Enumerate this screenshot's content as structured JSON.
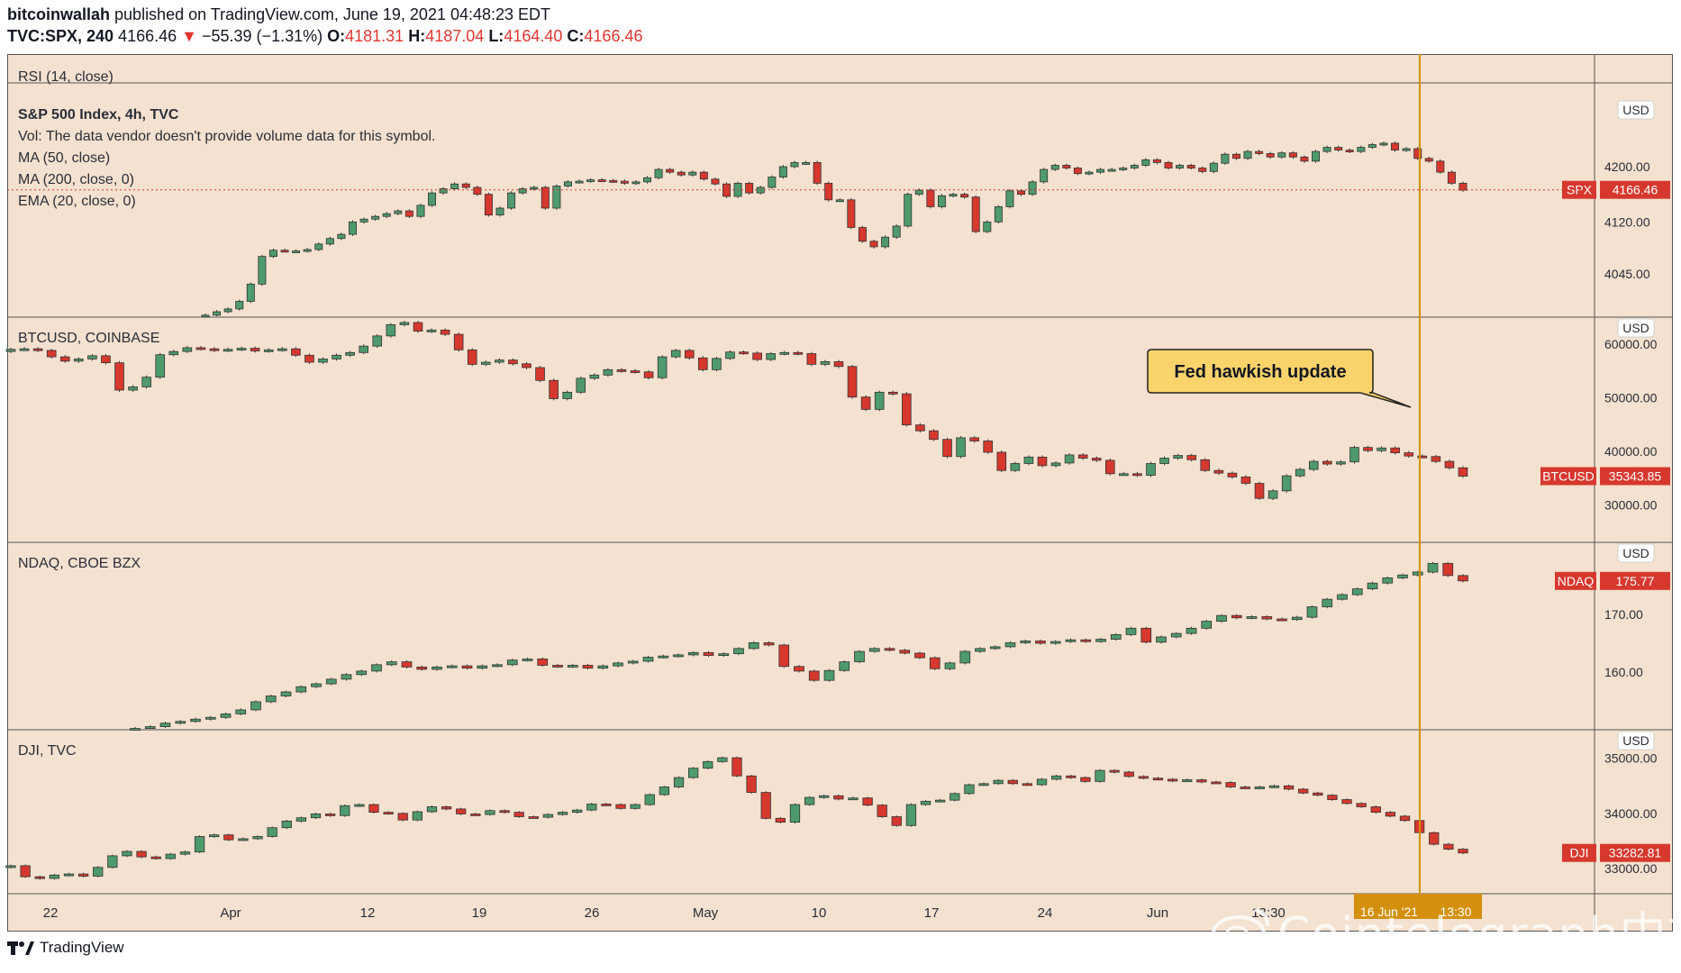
{
  "header": {
    "author": "bitcoinwallah",
    "published_text": "published on TradingView.com, June 19, 2021 04:48:23 EDT",
    "symbol": "TVC:SPX, 240",
    "last": "4166.46",
    "change": "−55.39 (−1.31%)",
    "o_label": "O:",
    "o": "4181.31",
    "h_label": "H:",
    "h": "4187.04",
    "l_label": "L:",
    "l": "4164.40",
    "c_label": "C:",
    "c": "4166.46"
  },
  "footer": {
    "brand": "TradingView",
    "watermark": "Cointelegraph中文"
  },
  "colors": {
    "background": "#f4e1cf",
    "up": "#4e9a6d",
    "down": "#d6382e",
    "event_line": "#d4900c",
    "callout_bg": "#fbd36b"
  },
  "chart_data": [
    {
      "type": "candlestick",
      "pane": "RSI",
      "title": "RSI (14, close)"
    },
    {
      "type": "candlestick",
      "title": "S&P 500 Index, 4h, TVC",
      "legend": [
        "Vol: The data vendor doesn't provide volume data for this symbol.",
        "MA (50, close)",
        "MA (200, close, 0)",
        "EMA (20, close, 0)"
      ],
      "currency": "USD",
      "y_ticks": [
        "4200.00",
        "4120.00",
        "4045.00"
      ],
      "y_range": [
        3990,
        4290
      ],
      "tag": "SPX",
      "last": "4166.46",
      "y_values": [
        3985,
        3990,
        3994,
        4005,
        4030,
        4070,
        4079,
        4078,
        4078,
        4080,
        4088,
        4096,
        4102,
        4120,
        4124,
        4128,
        4132,
        4136,
        4128,
        4144,
        4162,
        4168,
        4175,
        4170,
        4160,
        4130,
        4140,
        4162,
        4168,
        4170,
        4140,
        4172,
        4178,
        4179,
        4181,
        4180,
        4179,
        4176,
        4178,
        4184,
        4196,
        4192,
        4188,
        4192,
        4182,
        4175,
        4157,
        4176,
        4162,
        4170,
        4185,
        4200,
        4206,
        4206,
        4176,
        4152,
        4152,
        4112,
        4092,
        4084,
        4098,
        4114,
        4160,
        4166,
        4142,
        4158,
        4160,
        4156,
        4106,
        4120,
        4142,
        4165,
        4160,
        4178,
        4196,
        4202,
        4198,
        4190,
        4192,
        4196,
        4196,
        4198,
        4202,
        4210,
        4206,
        4198,
        4202,
        4198,
        4193,
        4205,
        4218,
        4212,
        4222,
        4219,
        4214,
        4220,
        4214,
        4208,
        4222,
        4228,
        4224,
        4222,
        4228,
        4232,
        4234,
        4224,
        4226,
        4212,
        4208,
        4192,
        4176,
        4166
      ]
    },
    {
      "type": "candlestick",
      "title": "BTCUSD, COINBASE",
      "currency": "USD",
      "y_ticks": [
        "60000.00",
        "50000.00",
        "40000.00",
        "30000.00"
      ],
      "y_range": [
        24000,
        64000
      ],
      "tag": "BTCUSD",
      "last": "35343.85",
      "annotation": "Fed hawkish update",
      "y_values": [
        59000,
        59100,
        58800,
        57600,
        56800,
        57200,
        57800,
        56500,
        51400,
        52000,
        53800,
        58000,
        58600,
        59300,
        59100,
        58800,
        59000,
        59200,
        58700,
        58900,
        59100,
        57900,
        56600,
        57200,
        57900,
        58400,
        59600,
        61500,
        63600,
        64000,
        62400,
        62600,
        61800,
        58900,
        56200,
        56600,
        57000,
        56300,
        55600,
        53200,
        49800,
        51000,
        53600,
        54200,
        55200,
        55000,
        54800,
        53700,
        57600,
        58800,
        57400,
        55200,
        57300,
        58500,
        58300,
        57100,
        58200,
        58400,
        58200,
        56200,
        56700,
        55800,
        50100,
        47800,
        51000,
        50700,
        44900,
        43800,
        42200,
        39000,
        42500,
        41900,
        39800,
        36400,
        37700,
        38900,
        37300,
        37800,
        39300,
        38700,
        38300,
        35800,
        35800,
        35500,
        37700,
        38700,
        39200,
        38400,
        36400,
        35900,
        35200,
        34000,
        31200,
        32600,
        35400,
        36600,
        38100,
        37600,
        38000,
        40700,
        40100,
        40600,
        39700,
        39100,
        39000,
        38100,
        36900,
        35340
      ]
    },
    {
      "type": "candlestick",
      "title": "NDAQ, CBOE BZX",
      "currency": "USD",
      "y_ticks": [
        "170.00",
        "160.00"
      ],
      "y_range": [
        151,
        181.5
      ],
      "tag": "NDAQ",
      "last": "175.77",
      "y_values": [
        150.3,
        150.6,
        151.2,
        151.5,
        151.9,
        152.2,
        152.8,
        153.5,
        154.9,
        155.9,
        156.6,
        157.5,
        158.0,
        158.8,
        159.6,
        160.2,
        161.3,
        161.8,
        160.9,
        160.5,
        160.9,
        161.1,
        160.7,
        161.1,
        161.3,
        162.1,
        162.3,
        161.2,
        161.0,
        161.2,
        160.7,
        161.1,
        161.6,
        161.9,
        162.6,
        162.8,
        163.0,
        163.4,
        162.9,
        163.2,
        164.1,
        165.1,
        164.7,
        161.0,
        160.2,
        158.6,
        160.3,
        161.8,
        163.6,
        164.1,
        163.8,
        163.3,
        162.5,
        160.6,
        161.6,
        163.6,
        164.1,
        164.4,
        165.1,
        165.4,
        165.0,
        165.3,
        165.6,
        165.3,
        165.7,
        166.5,
        167.6,
        165.2,
        166.1,
        166.7,
        167.6,
        168.8,
        169.8,
        169.4,
        169.6,
        169.2,
        169.1,
        169.5,
        171.3,
        172.6,
        173.4,
        174.4,
        175.4,
        176.3,
        176.8,
        177.3,
        178.8,
        176.7,
        175.77
      ]
    },
    {
      "type": "candlestick",
      "title": "DJI, TVC",
      "currency": "USD",
      "y_ticks": [
        "35000.00",
        "34000.00",
        "33000.00"
      ],
      "y_range": [
        32640,
        35420
      ],
      "tag": "DJI",
      "last": "33282.81",
      "y_values": [
        33050,
        32850,
        32820,
        32880,
        32900,
        32860,
        33020,
        33230,
        33310,
        33210,
        33180,
        33260,
        33300,
        33580,
        33610,
        33520,
        33540,
        33580,
        33740,
        33860,
        33920,
        33990,
        33960,
        34140,
        34160,
        34020,
        34000,
        33880,
        34030,
        34120,
        34080,
        33990,
        33980,
        34050,
        34020,
        33940,
        33930,
        33980,
        34020,
        34060,
        34170,
        34160,
        34090,
        34160,
        34340,
        34480,
        34650,
        34820,
        34940,
        35010,
        34680,
        34380,
        33910,
        33840,
        34160,
        34290,
        34320,
        34260,
        34280,
        34150,
        33940,
        33780,
        34160,
        34220,
        34240,
        34360,
        34520,
        34540,
        34600,
        34540,
        34520,
        34620,
        34680,
        34650,
        34580,
        34780,
        34750,
        34670,
        34640,
        34620,
        34590,
        34610,
        34570,
        34560,
        34480,
        34460,
        34480,
        34500,
        34440,
        34370,
        34330,
        34250,
        34180,
        34120,
        34020,
        33950,
        33870,
        33650,
        33440,
        33350,
        33282
      ]
    }
  ],
  "x_axis": {
    "labels": [
      "22",
      "Apr",
      "12",
      "19",
      "26",
      "May",
      "10",
      "17",
      "24",
      "Jun",
      "13:30",
      "16 Jun '21",
      "13:30"
    ],
    "highlight_date": "16 Jun '21",
    "highlight_time": "13:30"
  }
}
